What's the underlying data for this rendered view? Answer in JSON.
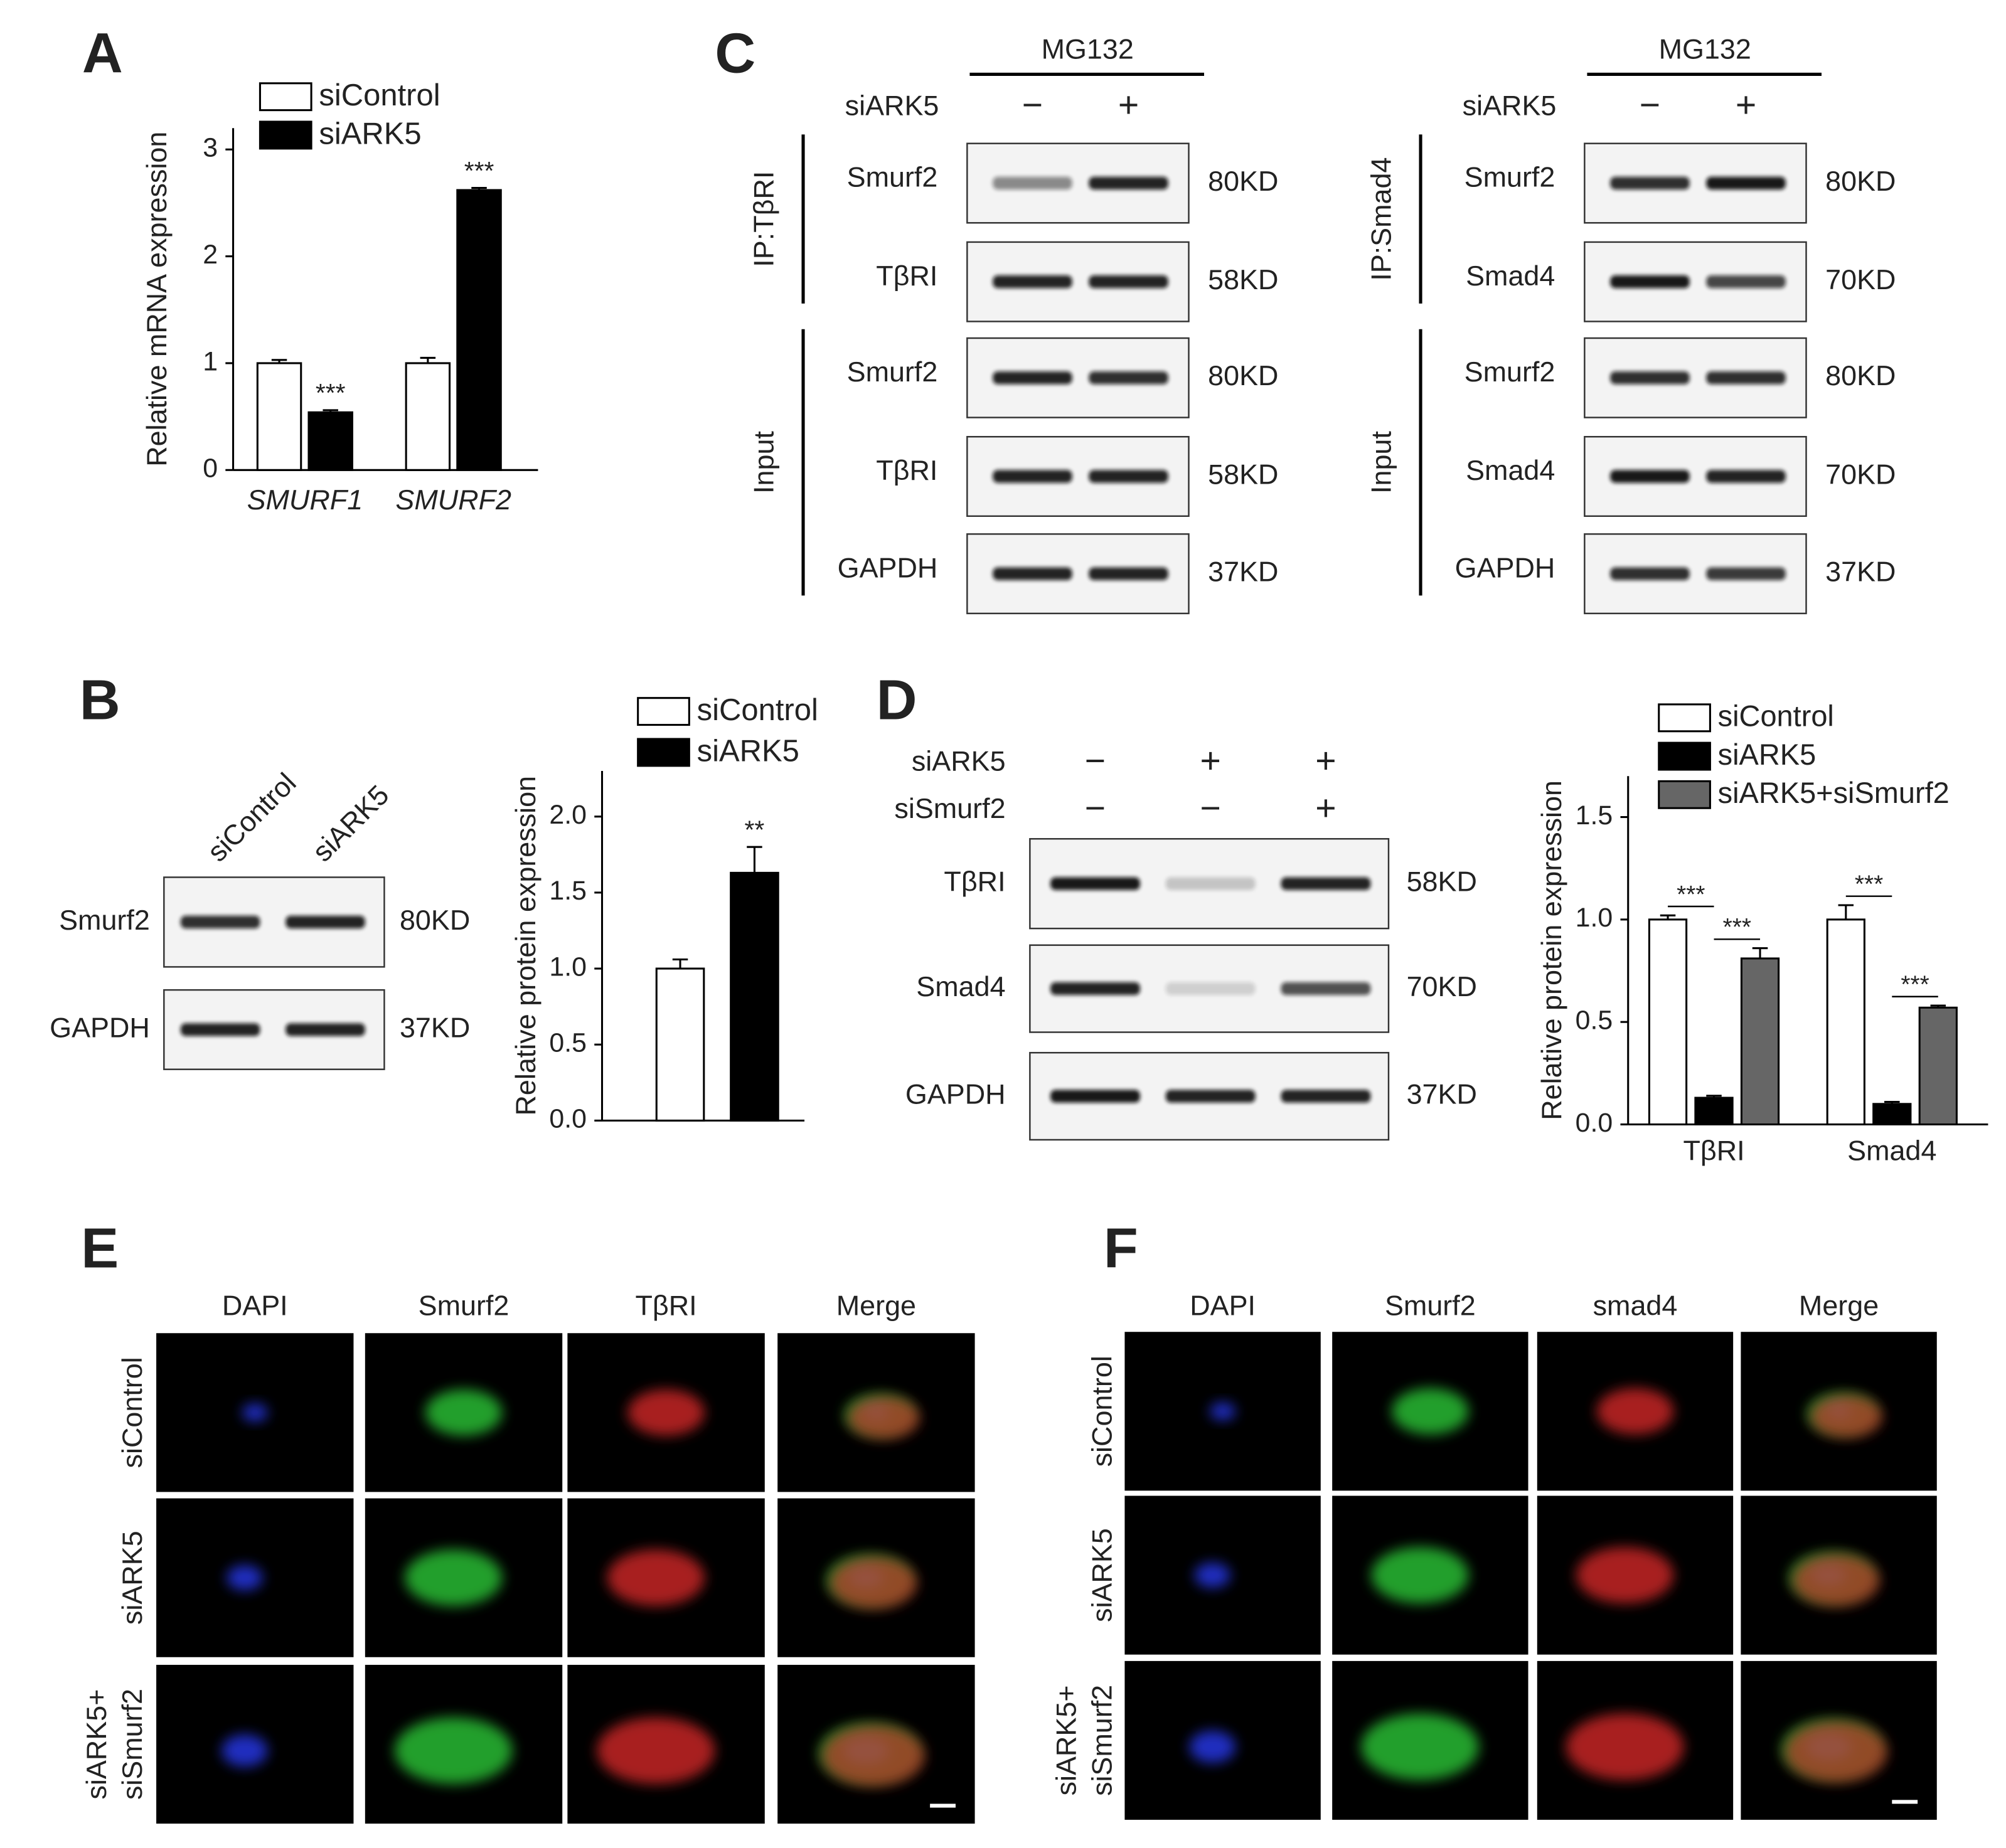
{
  "panel_labels": [
    "A",
    "B",
    "C",
    "D",
    "E",
    "F"
  ],
  "chart_data": [
    {
      "type": "bar",
      "categories": [
        "SMURF1",
        "SMURF2"
      ],
      "ylabel": "Relative mRNA expression",
      "ylim": [
        0,
        3.2
      ],
      "yticks": [
        0,
        1,
        2,
        3
      ],
      "series": [
        {
          "name": "siControl",
          "color": "#ffffff",
          "values": [
            1.0,
            1.0
          ],
          "errors": [
            0.03,
            0.05
          ]
        },
        {
          "name": "siARK5",
          "color": "#000000",
          "values": [
            0.54,
            2.62
          ],
          "errors": [
            0.02,
            0.02
          ],
          "significance": [
            "***",
            "***"
          ]
        }
      ]
    },
    {
      "type": "bar",
      "categories": [
        null
      ],
      "ylabel": "Relative protein expression",
      "ylim": [
        0,
        2.3
      ],
      "yticks": [
        {
          "value": 0,
          "label": "0.0"
        },
        {
          "value": 0.5,
          "label": "0.5"
        },
        {
          "value": 1,
          "label": "1.0"
        },
        {
          "value": 1.5,
          "label": "1.5"
        },
        {
          "value": 2,
          "label": "2.0"
        }
      ],
      "series": [
        {
          "name": "siControl",
          "color": "#ffffff",
          "values": [
            1.0
          ],
          "errors": [
            0.06
          ]
        },
        {
          "name": "siARK5",
          "color": "#000000",
          "values": [
            1.63
          ],
          "errors": [
            0.17
          ],
          "significance": [
            "**"
          ]
        }
      ]
    },
    {
      "type": "bar",
      "categories": [
        "TβRI",
        "Smad4"
      ],
      "ylabel": "Relative protein expression",
      "ylim": [
        0,
        1.7
      ],
      "yticks": [
        {
          "value": 0,
          "label": "0.0"
        },
        {
          "value": 0.5,
          "label": "0.5"
        },
        {
          "value": 1,
          "label": "1.0"
        },
        {
          "value": 1.5,
          "label": "1.5"
        }
      ],
      "series": [
        {
          "name": "siControl",
          "color": "#ffffff",
          "values": [
            1.0,
            1.0
          ],
          "errors": [
            0.02,
            0.07
          ]
        },
        {
          "name": "siARK5",
          "color": "#000000",
          "values": [
            0.13,
            0.1
          ],
          "errors": [
            0.01,
            0.01
          ],
          "significance": [
            "***",
            "***"
          ]
        },
        {
          "name": "siARK5+siSmurf2",
          "color": "#666666",
          "values": [
            0.81,
            0.57
          ],
          "errors": [
            0.05,
            0.01
          ],
          "significance": [
            "***",
            "***"
          ]
        }
      ]
    }
  ],
  "blot_C": [
    {
      "header": "MG132",
      "treatment": "siARK5",
      "signs": [
        "−",
        "+"
      ],
      "groups": [
        {
          "label": "IP:TβRI",
          "rows": [
            {
              "protein": "Smurf2",
              "size": "80KD"
            },
            {
              "protein": "TβRI",
              "size": "58KD"
            }
          ]
        },
        {
          "label": "Input",
          "rows": [
            {
              "protein": "Smurf2",
              "size": "80KD"
            },
            {
              "protein": "TβRI",
              "size": "58KD"
            },
            {
              "protein": "GAPDH",
              "size": "37KD"
            }
          ]
        }
      ]
    },
    {
      "header": "MG132",
      "treatment": "siARK5",
      "signs": [
        "−",
        "+"
      ],
      "groups": [
        {
          "label": "IP:Smad4",
          "rows": [
            {
              "protein": "Smurf2",
              "size": "80KD"
            },
            {
              "protein": "Smad4",
              "size": "70KD"
            }
          ]
        },
        {
          "label": "Input",
          "rows": [
            {
              "protein": "Smurf2",
              "size": "80KD"
            },
            {
              "protein": "Smad4",
              "size": "70KD"
            },
            {
              "protein": "GAPDH",
              "size": "37KD"
            }
          ]
        }
      ]
    }
  ],
  "blot_B": {
    "lanes": [
      "siControl",
      "siARK5"
    ],
    "rows": [
      {
        "protein": "Smurf2",
        "size": "80KD"
      },
      {
        "protein": "GAPDH",
        "size": "37KD"
      }
    ]
  },
  "blot_D": {
    "treatments": [
      {
        "name": "siARK5",
        "signs": [
          "−",
          "+",
          "+"
        ]
      },
      {
        "name": "siSmurf2",
        "signs": [
          "−",
          "−",
          "+"
        ]
      }
    ],
    "rows": [
      {
        "protein": "TβRI",
        "size": "58KD"
      },
      {
        "protein": "Smad4",
        "size": "70KD"
      },
      {
        "protein": "GAPDH",
        "size": "37KD"
      }
    ]
  },
  "panel_E": {
    "columns": [
      {
        "name": "DAPI",
        "color": "#2222ee"
      },
      {
        "name": "Smurf2",
        "color": "#22cc22"
      },
      {
        "name": "TβRI",
        "color": "#e02020"
      },
      {
        "name": "Merge",
        "color": "#111111"
      }
    ],
    "rows": [
      "siControl",
      "siARK5",
      [
        "siARK5+",
        "siSmurf2"
      ]
    ]
  },
  "panel_F": {
    "columns": [
      {
        "name": "DAPI",
        "color": "#2222ee"
      },
      {
        "name": "Smurf2",
        "color": "#22cc22"
      },
      {
        "name": "smad4",
        "color": "#e02020"
      },
      {
        "name": "Merge",
        "color": "#111111"
      }
    ],
    "rows": [
      "siControl",
      "siARK5",
      [
        "siARK5+",
        "siSmurf2"
      ]
    ]
  }
}
